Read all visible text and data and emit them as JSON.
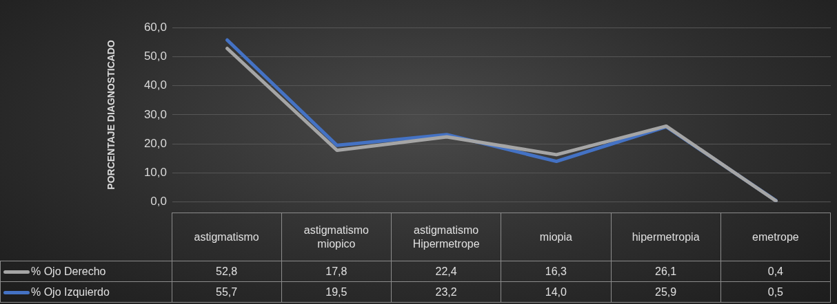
{
  "chart_data": {
    "type": "line",
    "ylabel": "PORCENTAJE DIAGNOSTICADO",
    "categories": [
      "astigmatismo",
      "astigmatismo miopico",
      "astigmatismo Hipermetrope",
      "miopia",
      "hipermetropia",
      "emetrope"
    ],
    "series": [
      {
        "name": "% Ojo Derecho",
        "color": "#a5a5a5",
        "values": [
          52.8,
          17.8,
          22.4,
          16.3,
          26.1,
          0.4
        ],
        "value_labels": [
          "52,8",
          "17,8",
          "22,4",
          "16,3",
          "26,1",
          "0,4"
        ]
      },
      {
        "name": "% Ojo Izquierdo",
        "color": "#4472c4",
        "values": [
          55.7,
          19.5,
          23.2,
          14.0,
          25.9,
          0.5
        ],
        "value_labels": [
          "55,7",
          "19,5",
          "23,2",
          "14,0",
          "25,9",
          "0,5"
        ]
      }
    ],
    "ylim": [
      0,
      60
    ],
    "yticks": [
      {
        "value": 0,
        "label": "0,0"
      },
      {
        "value": 10,
        "label": "10,0"
      },
      {
        "value": 20,
        "label": "20,0"
      },
      {
        "value": 30,
        "label": "30,0"
      },
      {
        "value": 40,
        "label": "40,0"
      },
      {
        "value": 50,
        "label": "50,0"
      },
      {
        "value": 60,
        "label": "60,0"
      }
    ],
    "grid": "y",
    "legend": "bottom",
    "marker": "none",
    "line_style": "solid"
  }
}
